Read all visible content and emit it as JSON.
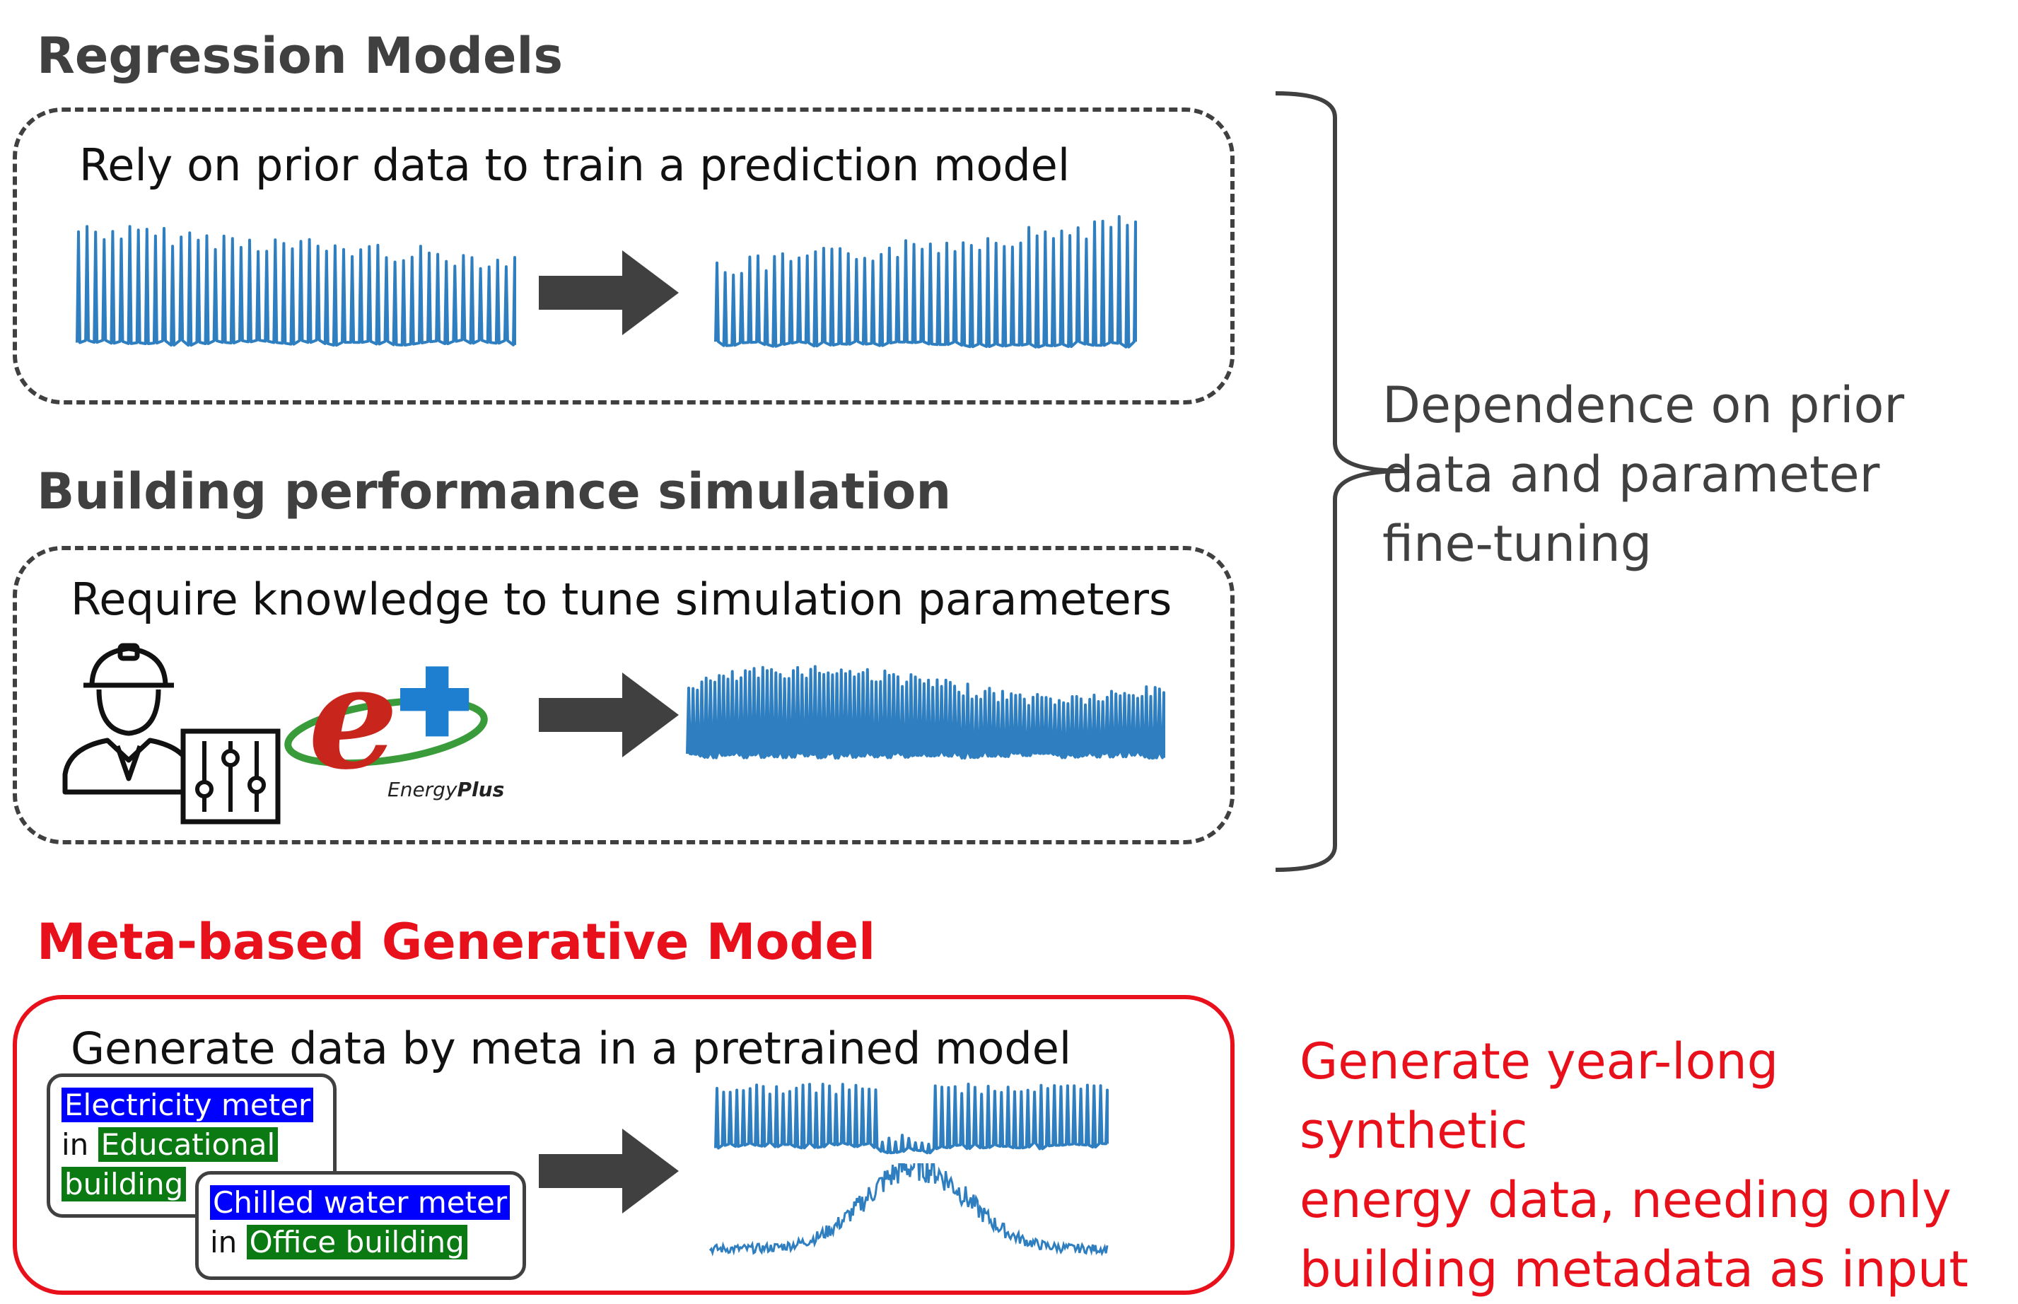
{
  "sections": {
    "regression": {
      "title": "Regression Models",
      "caption": "Rely on prior data to train a prediction model"
    },
    "simulation": {
      "title": "Building performance simulation",
      "caption": "Require knowledge to tune simulation parameters",
      "logo_text_a": "Energy",
      "logo_text_b": "Plus"
    },
    "generative": {
      "title": "Meta-based Generative Model",
      "caption": "Generate data by meta in a pretrained model",
      "card1": {
        "meter": "Electricity meter",
        "prep": "in",
        "building_a": "Educational",
        "building_b": "building"
      },
      "card2": {
        "meter": "Chilled water meter",
        "prep": "in",
        "building": "Office building"
      }
    }
  },
  "brace_note": [
    "Dependence on prior",
    "data and parameter",
    "fine-tuning"
  ],
  "generative_note": [
    "Generate year-long synthetic",
    "energy data, needing only",
    "building metadata as input"
  ],
  "colors": {
    "accent_red": "#e8101a",
    "series_blue": "#2f7fc0",
    "dark_gray": "#404040",
    "highlight_blue": "#0000ff",
    "highlight_green": "#0b7a12"
  },
  "icons": [
    "engineer-icon",
    "sliders-icon",
    "energyplus-logo",
    "arrow-right-icon",
    "curly-brace-icon"
  ]
}
